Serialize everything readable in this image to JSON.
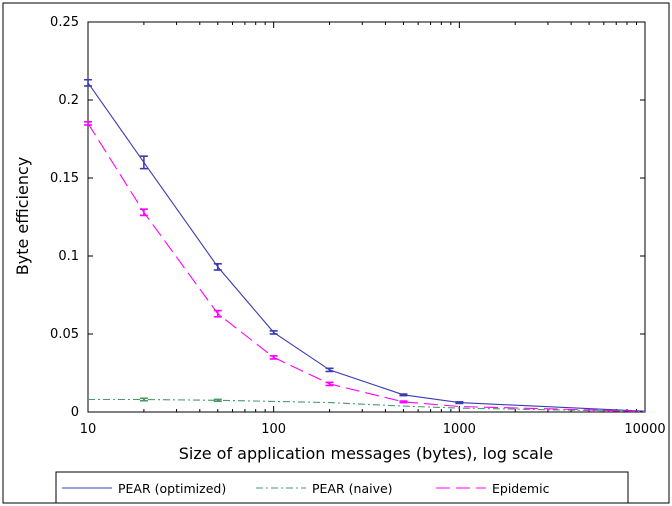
{
  "chart_data": {
    "type": "line",
    "xlabel": "Size of application messages (bytes), log scale",
    "ylabel": "Byte efficiency",
    "xscale": "log",
    "xlim": [
      10,
      10000
    ],
    "ylim": [
      0,
      0.25
    ],
    "xticks": [
      10,
      100,
      1000,
      10000
    ],
    "xtick_labels": [
      "10",
      "100",
      "1000",
      "10000"
    ],
    "yticks": [
      0,
      0.05,
      0.1,
      0.15,
      0.2,
      0.25
    ],
    "ytick_labels": [
      "0",
      "0.05",
      "0.1",
      "0.15",
      "0.2",
      "0.25"
    ],
    "grid": false,
    "legend_position": "bottom",
    "series": [
      {
        "name": "PEAR (optimized)",
        "color": "#3b3bb0",
        "style": "solid",
        "x": [
          10,
          20,
          50,
          100,
          200,
          500,
          1000,
          10000
        ],
        "y": [
          0.211,
          0.16,
          0.093,
          0.051,
          0.027,
          0.011,
          0.006,
          0.0005
        ],
        "err": [
          0.002,
          0.004,
          0.002,
          0.001,
          0.001,
          0.0005,
          0.0005,
          0
        ]
      },
      {
        "name": "PEAR (naive)",
        "color": "#4a9a68",
        "style": "dashdot",
        "x": [
          10,
          20,
          50,
          100,
          200,
          500,
          1000,
          10000
        ],
        "y": [
          0.008,
          0.008,
          0.0075,
          0.0068,
          0.006,
          0.0038,
          0.0025,
          0.0003
        ],
        "err": [
          0,
          0.0008,
          0.0006,
          0,
          0,
          0,
          0,
          0
        ]
      },
      {
        "name": "Epidemic",
        "color": "#ff00ff",
        "style": "dashed",
        "x": [
          10,
          20,
          50,
          100,
          200,
          500,
          1000,
          10000
        ],
        "y": [
          0.185,
          0.128,
          0.063,
          0.035,
          0.018,
          0.0065,
          0.0035,
          0.0004
        ],
        "err": [
          0.001,
          0.002,
          0.002,
          0.001,
          0.001,
          0.0005,
          0,
          0
        ]
      }
    ]
  }
}
